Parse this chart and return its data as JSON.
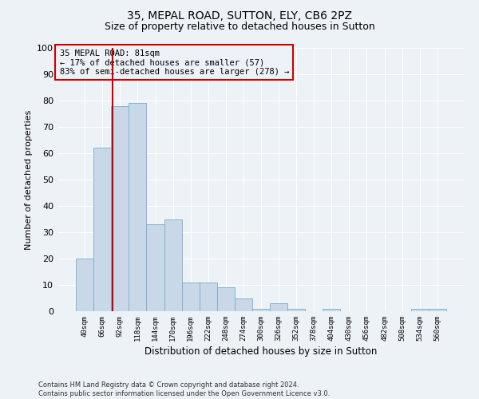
{
  "title1": "35, MEPAL ROAD, SUTTON, ELY, CB6 2PZ",
  "title2": "Size of property relative to detached houses in Sutton",
  "xlabel": "Distribution of detached houses by size in Sutton",
  "ylabel": "Number of detached properties",
  "bar_labels": [
    "40sqm",
    "66sqm",
    "92sqm",
    "118sqm",
    "144sqm",
    "170sqm",
    "196sqm",
    "222sqm",
    "248sqm",
    "274sqm",
    "300sqm",
    "326sqm",
    "352sqm",
    "378sqm",
    "404sqm",
    "430sqm",
    "456sqm",
    "482sqm",
    "508sqm",
    "534sqm",
    "560sqm"
  ],
  "bar_values": [
    20,
    62,
    78,
    79,
    33,
    35,
    11,
    11,
    9,
    5,
    1,
    3,
    1,
    0,
    1,
    0,
    0,
    0,
    0,
    1,
    1
  ],
  "bar_color": "#c8d8e8",
  "bar_edge_color": "#7aafc8",
  "annotation_box_text": "35 MEPAL ROAD: 81sqm\n← 17% of detached houses are smaller (57)\n83% of semi-detached houses are larger (278) →",
  "ylim": [
    0,
    100
  ],
  "yticks": [
    0,
    10,
    20,
    30,
    40,
    50,
    60,
    70,
    80,
    90,
    100
  ],
  "red_line_color": "#cc0000",
  "annotation_box_edge_color": "#cc0000",
  "background_color": "#edf2f7",
  "footer_text": "Contains HM Land Registry data © Crown copyright and database right 2024.\nContains public sector information licensed under the Open Government Licence v3.0.",
  "title1_fontsize": 10,
  "title2_fontsize": 9
}
